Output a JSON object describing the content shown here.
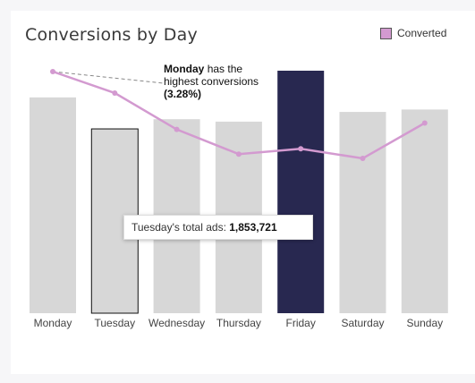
{
  "title": "Conversions by Day",
  "legend": {
    "label": "Converted",
    "color": "#d39ad0"
  },
  "annotation": {
    "day": "Monday",
    "text": "has the highest conversions",
    "value": "(3.28%)"
  },
  "tooltip": {
    "label": "Tuesday's total ads:",
    "value": "1,853,721"
  },
  "chart_data": {
    "type": "bar",
    "title": "Conversions by Day",
    "categories": [
      "Monday",
      "Tuesday",
      "Wednesday",
      "Thursday",
      "Friday",
      "Saturday",
      "Sunday"
    ],
    "series": [
      {
        "type": "bar",
        "values": [
          0.89,
          0.76,
          0.8,
          0.79,
          1.0,
          0.83,
          0.84
        ]
      },
      {
        "name": "Converted",
        "type": "line",
        "values": [
          3.28,
          3.08,
          2.74,
          2.51,
          2.56,
          2.47,
          2.8
        ]
      }
    ],
    "highlighted": {
      "Tuesday": "outlined",
      "Friday": "#282850"
    },
    "bar_color": "#d7d7d7",
    "line_color": "#d39ad0",
    "grid": false,
    "legend": "top-right"
  }
}
